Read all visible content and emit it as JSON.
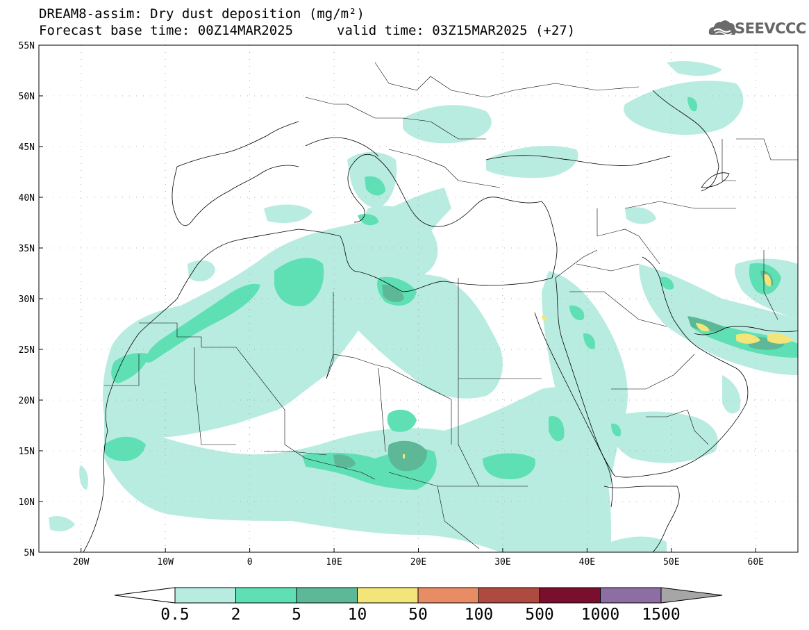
{
  "header": {
    "title_line1": "DREAM8-assim: Dry dust deposition (mg/m²)",
    "base_time": "Forecast base time: 00Z14MAR2025",
    "valid_time": "valid time: 03Z15MAR2025 (+27)",
    "logo_text": "SEEVCCC",
    "logo_icon": "cloud-logo-icon"
  },
  "map": {
    "lon_range": [
      -25,
      65
    ],
    "lat_range": [
      5,
      55
    ],
    "lat_labels": [
      "55N",
      "50N",
      "45N",
      "40N",
      "35N",
      "30N",
      "25N",
      "20N",
      "15N",
      "10N",
      "5N"
    ],
    "lon_labels": [
      "20W",
      "10W",
      "0",
      "10E",
      "20E",
      "30E",
      "40E",
      "50E",
      "60E"
    ],
    "grid": "dotted"
  },
  "colorbar": {
    "labels": [
      "0.5",
      "2",
      "5",
      "10",
      "50",
      "100",
      "500",
      "1000",
      "1500"
    ],
    "colors": [
      "#b9ece1",
      "#5fe0b4",
      "#5cb896",
      "#f2e67a",
      "#e88c66",
      "#ae4a40",
      "#7a0f2d",
      "#8d6ea3"
    ],
    "under_color": "#ffffff",
    "over_color": "#a6a6a6"
  },
  "legend_colors": {
    "level1": "#b9ece1",
    "level2": "#5fe0b4",
    "level3": "#5cb896",
    "level4": "#f2e67a"
  }
}
